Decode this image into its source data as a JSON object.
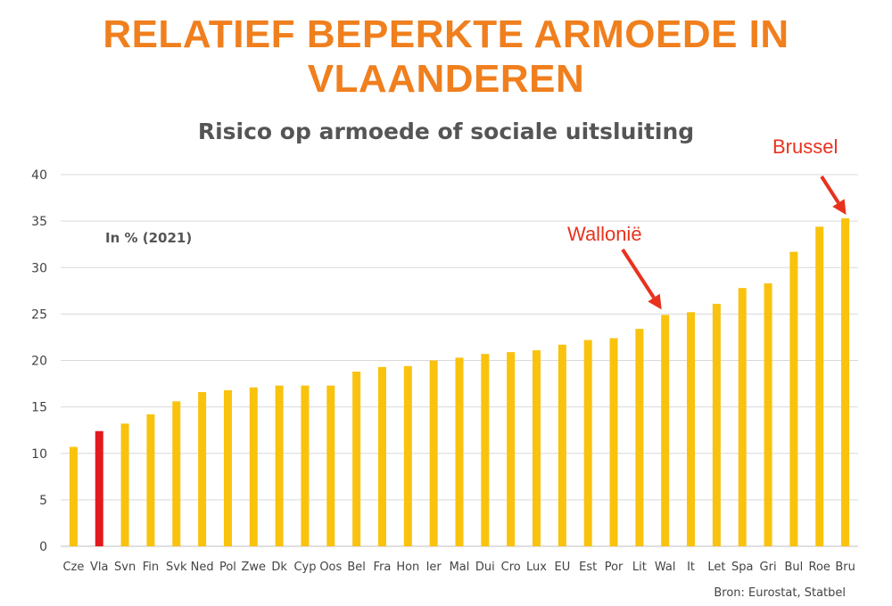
{
  "headline": {
    "line1": "RELATIEF BEPERKTE ARMOEDE IN",
    "line2": "VLAANDEREN"
  },
  "unit_note": "In % (2021)",
  "source": "Bron: Eurostat, Statbel",
  "callouts": {
    "wallonie": "Wallonië",
    "brussel": "Brussel"
  },
  "colors": {
    "headline": "#f07f1e",
    "bar": "#f9c20d",
    "highlight": "#e31a1c",
    "callout": "#e8321e",
    "grid": "#d9d9d9"
  },
  "chart_data": {
    "type": "bar",
    "title": "Risico op armoede of sociale uitsluiting",
    "xlabel": "",
    "ylabel": "",
    "ylim": [
      0,
      40
    ],
    "yticks": [
      0,
      5,
      10,
      15,
      20,
      25,
      30,
      35,
      40
    ],
    "grid": true,
    "categories": [
      "Cze",
      "Vla",
      "Svn",
      "Fin",
      "Svk",
      "Ned",
      "Pol",
      "Zwe",
      "Dk",
      "Cyp",
      "Oos",
      "Bel",
      "Fra",
      "Hon",
      "Ier",
      "Mal",
      "Dui",
      "Cro",
      "Lux",
      "EU",
      "Est",
      "Por",
      "Lit",
      "Wal",
      "It",
      "Let",
      "Spa",
      "Gri",
      "Bul",
      "Roe",
      "Bru"
    ],
    "values": [
      10.7,
      12.4,
      13.2,
      14.2,
      15.6,
      16.6,
      16.8,
      17.1,
      17.3,
      17.3,
      17.3,
      18.8,
      19.3,
      19.4,
      20.0,
      20.3,
      20.7,
      20.9,
      21.1,
      21.7,
      22.2,
      22.4,
      23.4,
      24.9,
      25.2,
      26.1,
      27.8,
      28.3,
      31.7,
      34.4,
      35.3
    ],
    "highlight": "Vla",
    "annotations": [
      {
        "text": "Wallonië",
        "target": "Wal"
      },
      {
        "text": "Brussel",
        "target": "Bru"
      }
    ]
  }
}
